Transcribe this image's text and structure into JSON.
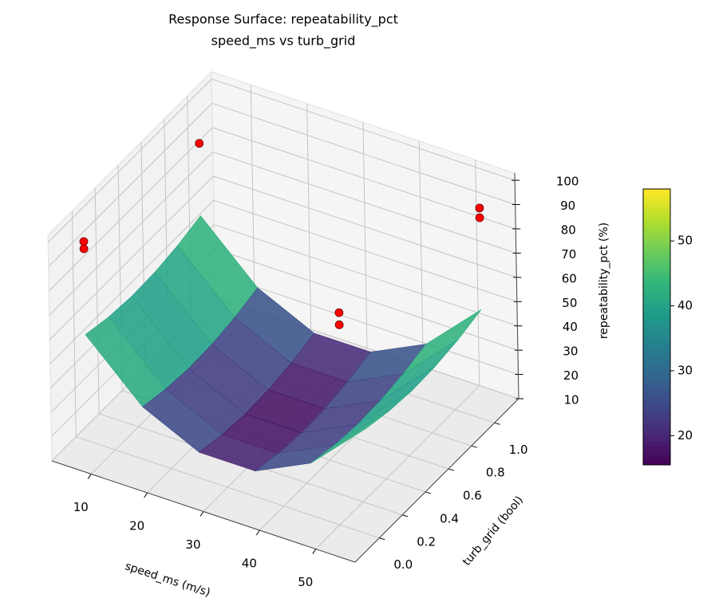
{
  "chart_data": {
    "type": "surface3d",
    "title": "Response Surface: repeatability_pct",
    "subtitle": "speed_ms vs turb_grid",
    "xlabel": "speed_ms (m/s)",
    "ylabel": "turb_grid (bool)",
    "zlabel": "repeatability_pct (%)",
    "xlim": [
      3,
      57
    ],
    "xticks": [
      10,
      20,
      30,
      40,
      50
    ],
    "ylim": [
      -0.21,
      1.21
    ],
    "yticks": [
      {
        "value": 0,
        "label": "0.0"
      },
      0.2,
      0.4,
      0.6,
      0.8,
      {
        "value": 1,
        "label": "1.0"
      }
    ],
    "zlim": [
      10,
      103
    ],
    "zticks": [
      10,
      20,
      30,
      40,
      50,
      60,
      70,
      80,
      90,
      100
    ],
    "grid": true,
    "colormap": "viridis",
    "clim": [
      15.5,
      58
    ],
    "cticks": [
      20,
      30,
      40,
      50
    ],
    "surface": {
      "x": [
        5,
        15,
        25,
        35,
        45,
        55
      ],
      "y": [
        0,
        0.2,
        0.4,
        0.6,
        0.8,
        1
      ],
      "z": [
        [
          53.6,
          51.4,
          50.4,
          50.8,
          52.4,
          55.2
        ],
        [
          31.6,
          29.4,
          28.4,
          28.8,
          30.4,
          33.2
        ],
        [
          20.6,
          18.4,
          17.4,
          17.8,
          19.4,
          22.2
        ],
        [
          20.6,
          18.4,
          17.4,
          17.8,
          19.4,
          22.2
        ],
        [
          31.6,
          29.4,
          28.4,
          28.8,
          30.4,
          33.2
        ],
        [
          53.6,
          51.4,
          50.4,
          50.8,
          52.4,
          55.2
        ]
      ]
    },
    "points": {
      "color": "#ff0000",
      "x": [
        5,
        5,
        5,
        40,
        40,
        55,
        55
      ],
      "y": [
        1,
        0,
        0,
        0.5,
        0.5,
        1,
        1
      ],
      "z": [
        85,
        92,
        89,
        66,
        61,
        97,
        93
      ]
    }
  }
}
